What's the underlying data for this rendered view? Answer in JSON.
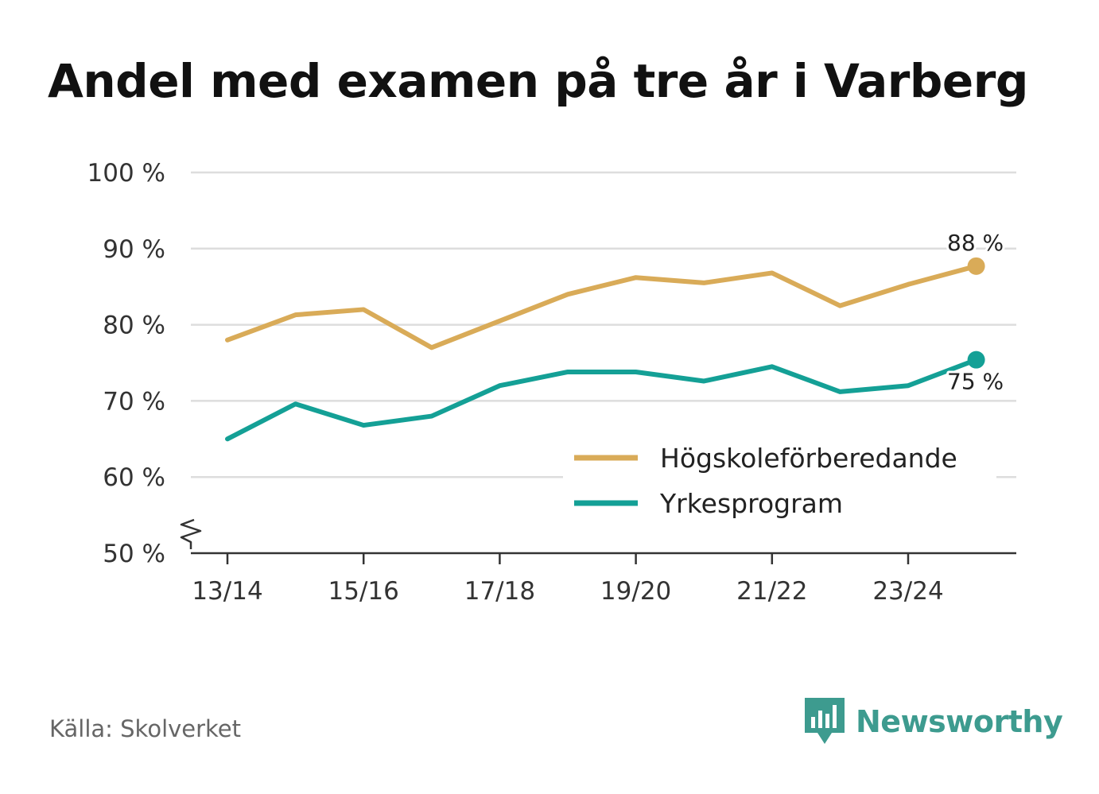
{
  "title": "Andel med examen på tre år i Varberg",
  "source": "Källa: Skolverket",
  "brand": {
    "name": "Newsworthy",
    "icon": "newsworthy-logo-icon",
    "color": "#3d9b8f"
  },
  "chart_data": {
    "type": "line",
    "title": "Andel med examen på tre år i Varberg",
    "xlabel": "",
    "ylabel": "",
    "ylim": [
      50,
      100
    ],
    "y_ticks": [
      50,
      60,
      70,
      80,
      90,
      100
    ],
    "y_tick_labels": [
      "50 %",
      "60 %",
      "70 %",
      "80 %",
      "90 %",
      "100 %"
    ],
    "y_axis_break": true,
    "categories": [
      "13/14",
      "14/15",
      "15/16",
      "16/17",
      "17/18",
      "18/19",
      "19/20",
      "20/21",
      "21/22",
      "22/23",
      "23/24",
      "24/25"
    ],
    "x_tick_labels": [
      "13/14",
      "15/16",
      "17/18",
      "19/20",
      "21/22",
      "23/24"
    ],
    "grid": true,
    "legend_position": "bottom-right",
    "series": [
      {
        "name": "Högskoleförberedande",
        "color": "#d9ab58",
        "values": [
          78.0,
          81.3,
          82.0,
          77.0,
          80.5,
          84.0,
          86.2,
          85.5,
          86.8,
          82.5,
          85.3,
          87.7
        ],
        "end_label": "88 %"
      },
      {
        "name": "Yrkesprogram",
        "color": "#14a096",
        "values": [
          65.0,
          69.6,
          66.8,
          68.0,
          72.0,
          73.8,
          73.8,
          72.6,
          74.5,
          71.2,
          72.0,
          75.4
        ],
        "end_label": "75 %"
      }
    ]
  }
}
